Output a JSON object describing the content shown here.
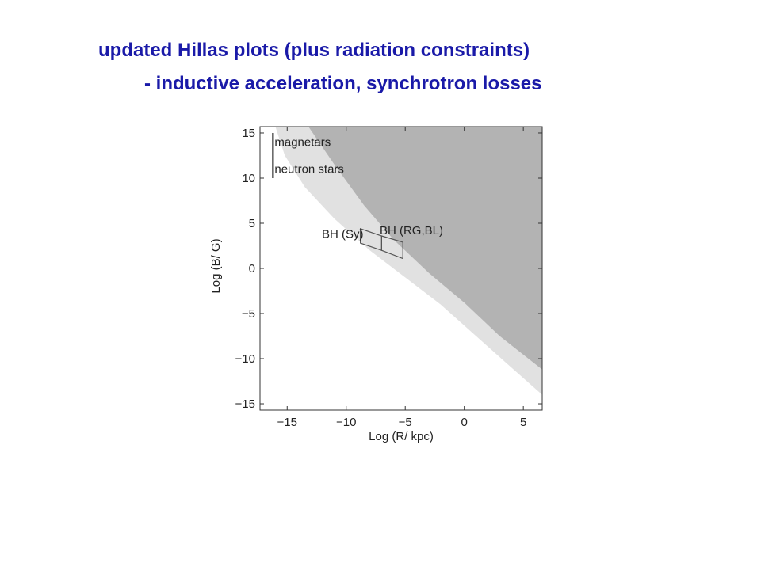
{
  "title": {
    "line1": "updated Hillas plots (plus radiation constraints)",
    "line2": "- inductive acceleration, synchrotron losses"
  },
  "chart_data": {
    "type": "area",
    "xlabel": "Log (R/ kpc)",
    "ylabel": "Log (B/ G)",
    "xlim": [
      -17.3,
      6.6
    ],
    "ylim": [
      -15.7,
      15.7
    ],
    "xticks": [
      -15,
      -10,
      -5,
      0,
      5
    ],
    "yticks": [
      -15,
      -10,
      -5,
      0,
      5,
      10,
      15
    ],
    "xtick_labels": [
      "−15",
      "−10",
      "−5",
      "0",
      "5"
    ],
    "ytick_labels": [
      "−15",
      "−10",
      "−5",
      "0",
      "5",
      "10",
      "15"
    ],
    "grid": false,
    "colors": {
      "light_region": "#e1e1e1",
      "dark_region": "#b3b3b3",
      "outline": "#555555"
    },
    "regions": [
      {
        "shade": "light",
        "boundary": [
          [
            -16.0,
            15.7
          ],
          [
            -15.2,
            12.5
          ],
          [
            -13.5,
            9.0
          ],
          [
            -11.0,
            5.5
          ],
          [
            -8.0,
            2.0
          ],
          [
            -5.0,
            -1.0
          ],
          [
            -2.0,
            -4.0
          ],
          [
            1.0,
            -7.5
          ],
          [
            4.0,
            -11.0
          ],
          [
            6.6,
            -14.0
          ]
        ]
      },
      {
        "shade": "dark",
        "boundary": [
          [
            -13.2,
            15.7
          ],
          [
            -11.0,
            11.5
          ],
          [
            -8.5,
            7.0
          ],
          [
            -6.0,
            3.2
          ],
          [
            -3.0,
            -0.5
          ],
          [
            0.0,
            -3.8
          ],
          [
            3.0,
            -7.5
          ],
          [
            6.6,
            -11.2
          ]
        ]
      }
    ],
    "annotations": [
      {
        "label": "magnetars",
        "x": -16.2,
        "y": 14.0
      },
      {
        "label": "neutron  stars",
        "x": -16.2,
        "y": 11.0
      },
      {
        "label": "BH (Sy)",
        "x": -12.2,
        "y": 3.8
      },
      {
        "label": "BH (RG,BL)",
        "x": -7.3,
        "y": 4.2
      }
    ],
    "source_bar": {
      "x": -16.2,
      "y_range": [
        10.0,
        15.0
      ]
    },
    "boxes": [
      {
        "name": "BH (Sy)",
        "corners": [
          [
            -8.8,
            4.4
          ],
          [
            -7.0,
            3.6
          ],
          [
            -7.0,
            2.0
          ],
          [
            -8.8,
            2.8
          ]
        ]
      },
      {
        "name": "BH (RG,BL)",
        "corners": [
          [
            -7.0,
            3.6
          ],
          [
            -5.2,
            2.9
          ],
          [
            -5.2,
            1.1
          ],
          [
            -7.0,
            2.0
          ]
        ]
      }
    ]
  }
}
